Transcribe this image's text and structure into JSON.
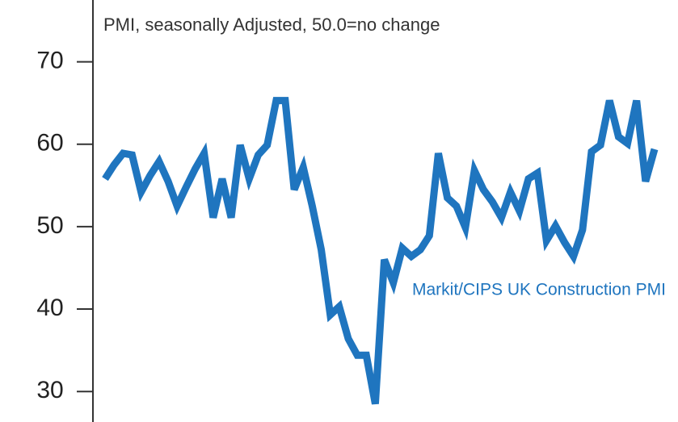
{
  "chart_data": {
    "type": "line",
    "subtitle": "PMI, seasonally Adjusted, 50.0=no change",
    "series": [
      {
        "name": "Markit/CIPS UK Construction PMI",
        "color": "#1f75bf",
        "values": [
          55.8,
          57.5,
          58.9,
          58.7,
          54.2,
          56.2,
          57.9,
          55.5,
          52.5,
          54.8,
          57,
          58.9,
          51.1,
          55.8,
          51.1,
          59.9,
          55.8,
          58.7,
          59.9,
          65.3,
          65.3,
          54.5,
          57.2,
          52.5,
          47.2,
          39.3,
          40.3,
          36.4,
          34.4,
          34.4,
          28.5,
          46.0,
          43.2,
          47.4,
          46.4,
          47.2,
          48.9,
          58.9,
          53.5,
          52.5,
          49.9,
          56.8,
          54.5,
          53.0,
          51.1,
          54.2,
          51.9,
          55.8,
          56.5,
          48.3,
          50.1,
          48.1,
          46.4,
          49.6,
          59.1,
          59.9,
          65.3,
          60.9,
          60.1,
          65.3,
          55.5,
          59.4
        ]
      }
    ],
    "ylim": [
      26.3,
      77.5
    ],
    "yticks": [
      30,
      40,
      50,
      60,
      70
    ],
    "grid": false
  }
}
